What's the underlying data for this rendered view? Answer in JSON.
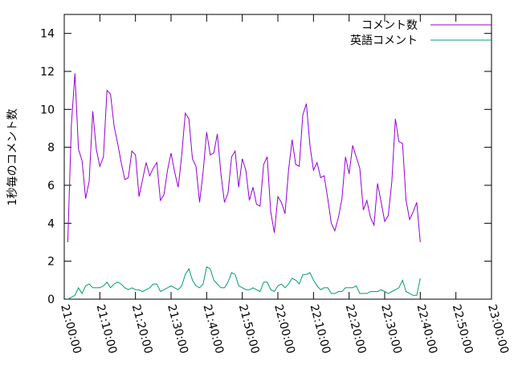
{
  "chart_data": {
    "type": "line",
    "ylabel": "1秒毎のコメント数",
    "xlabel": "",
    "title": "",
    "ylim": [
      0,
      15
    ],
    "xlim": [
      "21:00:00",
      "23:00:00"
    ],
    "yticks": [
      "0",
      "2",
      "4",
      "6",
      "8",
      "10",
      "12",
      "14"
    ],
    "xticks": [
      "21:00:00",
      "21:10:00",
      "21:20:00",
      "21:30:00",
      "21:40:00",
      "21:50:00",
      "22:00:00",
      "22:10:00",
      "22:20:00",
      "22:30:00",
      "22:40:00",
      "22:50:00",
      "23:00:00"
    ],
    "legend_position": "top-right",
    "grid": false,
    "x_start": "21:01:00",
    "x_step_seconds": 60,
    "series": [
      {
        "name": "コメント数",
        "color": "#9400d3",
        "values": [
          3.0,
          9.2,
          11.9,
          7.9,
          7.3,
          5.3,
          6.2,
          9.9,
          7.9,
          7.0,
          7.5,
          11.0,
          10.8,
          9.1,
          8.2,
          7.2,
          6.3,
          6.4,
          7.8,
          7.6,
          5.4,
          6.3,
          7.2,
          6.5,
          6.9,
          7.2,
          5.2,
          5.5,
          6.8,
          7.7,
          6.7,
          5.9,
          7.6,
          9.8,
          9.5,
          7.4,
          7.0,
          5.1,
          6.7,
          8.8,
          7.6,
          7.7,
          8.7,
          6.6,
          5.1,
          5.6,
          7.5,
          7.8,
          5.9,
          7.4,
          6.8,
          5.2,
          5.9,
          5.0,
          4.9,
          7.1,
          7.5,
          4.6,
          3.5,
          5.4,
          5.1,
          4.5,
          6.8,
          8.4,
          7.1,
          7.0,
          9.7,
          10.3,
          8.1,
          6.8,
          7.2,
          6.4,
          6.5,
          5.3,
          4.0,
          3.6,
          4.3,
          5.3,
          7.5,
          6.6,
          8.1,
          7.5,
          6.9,
          4.7,
          5.2,
          4.3,
          3.9,
          6.1,
          5.1,
          4.1,
          4.4,
          6.2,
          9.5,
          8.3,
          8.2,
          5.2,
          4.2,
          4.6,
          5.1,
          3.0
        ]
      },
      {
        "name": "英語コメント",
        "color": "#009e73",
        "values": [
          0.0,
          0.1,
          0.2,
          0.6,
          0.3,
          0.7,
          0.8,
          0.6,
          0.6,
          0.6,
          0.7,
          0.9,
          0.6,
          0.8,
          0.9,
          0.8,
          0.6,
          0.5,
          0.6,
          0.5,
          0.5,
          0.4,
          0.5,
          0.6,
          0.8,
          0.8,
          0.4,
          0.5,
          0.6,
          0.7,
          0.6,
          0.5,
          0.7,
          1.3,
          1.6,
          1.0,
          0.7,
          0.6,
          0.8,
          1.7,
          1.6,
          1.0,
          0.8,
          0.6,
          0.6,
          0.9,
          1.4,
          1.3,
          0.7,
          0.6,
          0.5,
          0.5,
          0.6,
          0.5,
          0.4,
          0.9,
          0.9,
          0.5,
          0.4,
          0.7,
          0.8,
          0.6,
          0.8,
          1.1,
          1.0,
          0.8,
          1.3,
          1.3,
          1.4,
          1.0,
          0.7,
          0.5,
          0.6,
          0.6,
          0.3,
          0.3,
          0.4,
          0.4,
          0.6,
          0.6,
          0.6,
          0.7,
          0.3,
          0.3,
          0.3,
          0.4,
          0.4,
          0.4,
          0.5,
          0.4,
          0.3,
          0.4,
          0.5,
          0.6,
          1.0,
          0.4,
          0.3,
          0.2,
          0.2,
          1.1
        ]
      }
    ]
  }
}
